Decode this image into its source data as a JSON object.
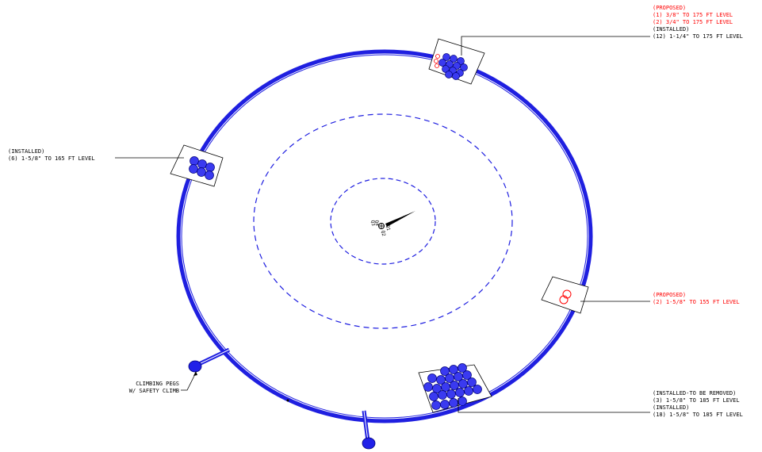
{
  "colors": {
    "tower": "#1f1fe0",
    "installed_text": "#000000",
    "proposed_text": "#ff0000",
    "leader": "#000000"
  },
  "quadrants": {
    "q1": "Q1",
    "q2": "Q2",
    "q3": "Q3",
    "q4": "Q4"
  },
  "callouts": {
    "top_right": {
      "line1": "(PROPOSED)",
      "line2": "(1) 3/8\" TO 175 FT LEVEL",
      "line3": "(2) 3/4\" TO 175 FT LEVEL",
      "line4": "(INSTALLED)",
      "line5": "(12) 1-1/4\" TO 175 FT LEVEL"
    },
    "left": {
      "line1": "(INSTALLED)",
      "line2": "(6) 1-5/8\" TO 165 FT LEVEL"
    },
    "right": {
      "line1": "(PROPOSED)",
      "line2": "(2) 1-5/8\" TO 155 FT LEVEL"
    },
    "bottom_right": {
      "line1": "(INSTALLED-TO BE REMOVED)",
      "line2": "(3) 1-5/8\" TO 185 FT LEVEL",
      "line3": "(INSTALLED)",
      "line4": "(18) 1-5/8\" TO 185 FT LEVEL"
    },
    "climbing": {
      "line1": "CLIMBING PEGS",
      "line2": "W/ SAFETY CLIMB"
    }
  }
}
